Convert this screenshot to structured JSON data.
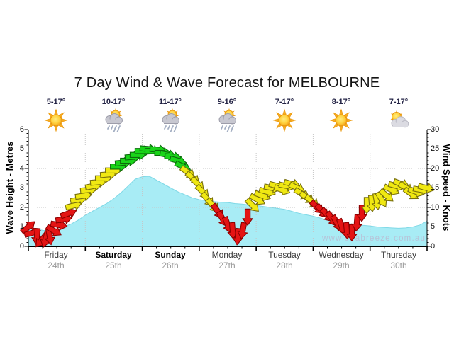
{
  "title": "7 Day Wind & Wave Forecast for MELBOURNE",
  "watermark": "www.seabreeze.com.au",
  "days": [
    {
      "name": "Friday",
      "date": "24th",
      "temp": "5-17°",
      "icon": "sun",
      "weekend": false
    },
    {
      "name": "Saturday",
      "date": "25th",
      "temp": "10-17°",
      "icon": "rainsun",
      "weekend": true
    },
    {
      "name": "Sunday",
      "date": "26th",
      "temp": "11-17°",
      "icon": "rainsun",
      "weekend": true
    },
    {
      "name": "Monday",
      "date": "27th",
      "temp": "9-16°",
      "icon": "rainsun",
      "weekend": false
    },
    {
      "name": "Tuesday",
      "date": "28th",
      "temp": "7-17°",
      "icon": "sun",
      "weekend": false
    },
    {
      "name": "Wednesday",
      "date": "29th",
      "temp": "8-17°",
      "icon": "sun",
      "weekend": false
    },
    {
      "name": "Thursday",
      "date": "30th",
      "temp": "7-17°",
      "icon": "cloudsun",
      "weekend": false
    }
  ],
  "axes": {
    "left": {
      "title": "Wave Height - Metres",
      "ticks": [
        "0",
        "1",
        "2",
        "3",
        "4",
        "5",
        "6"
      ],
      "range": [
        0,
        6
      ]
    },
    "right": {
      "title": "Wind Speed - Knots",
      "ticks": [
        "0",
        "5",
        "10",
        "15",
        "20",
        "25",
        "30"
      ],
      "range": [
        0,
        30
      ]
    },
    "x": {
      "days_shown": 7,
      "hours_total": 168,
      "minor_tick_hours": 6
    }
  },
  "colors": {
    "wave_fill": "#a8ecf5",
    "wave_edge": "#7fd8e6",
    "grid": "#c6c6c6",
    "axis": "#000000",
    "watermark": "#b7c3d8",
    "wind": {
      "r": {
        "fill": "#e41414",
        "stroke": "#8c0000"
      },
      "y": {
        "fill": "#f0e812",
        "stroke": "#79700c"
      },
      "g": {
        "fill": "#1ad41a",
        "stroke": "#0b6b0b"
      }
    }
  },
  "chart_data": {
    "type": "area",
    "title": "7 Day Wind & Wave Forecast for MELBOURNE",
    "x_unit": "hours from Friday 00:00",
    "xlim": [
      0,
      168
    ],
    "grid": "dotted, horizontal each metre, vertical each day boundary",
    "wave": {
      "name": "Wave Height - Metres",
      "ylim": [
        0,
        6
      ],
      "x": [
        0,
        3,
        6,
        9,
        12,
        15,
        18,
        21,
        24,
        27,
        30,
        33,
        36,
        39,
        42,
        45,
        48,
        51,
        54,
        57,
        60,
        63,
        66,
        69,
        72,
        75,
        78,
        81,
        84,
        87,
        90,
        93,
        96,
        99,
        102,
        105,
        108,
        111,
        114,
        117,
        120,
        123,
        126,
        129,
        132,
        135,
        138,
        141,
        144,
        147,
        150,
        153,
        156,
        159,
        162,
        165,
        168
      ],
      "m": [
        1.05,
        0.9,
        0.82,
        0.8,
        0.85,
        1.0,
        1.15,
        1.35,
        1.6,
        1.8,
        2.0,
        2.2,
        2.45,
        2.75,
        3.1,
        3.45,
        3.58,
        3.6,
        3.4,
        3.2,
        3.0,
        2.8,
        2.65,
        2.5,
        2.4,
        2.35,
        2.3,
        2.27,
        2.25,
        2.2,
        2.17,
        2.13,
        2.1,
        2.05,
        2.0,
        1.95,
        1.9,
        1.8,
        1.7,
        1.62,
        1.55,
        1.45,
        1.35,
        1.28,
        1.22,
        1.17,
        1.12,
        1.08,
        1.05,
        1.0,
        0.97,
        0.95,
        0.93,
        0.95,
        1.0,
        1.1,
        1.3
      ]
    },
    "wind": {
      "name": "Wind Speed - Knots",
      "ylim": [
        0,
        30
      ],
      "point_format": [
        "hour",
        "knots",
        "arrow_rotation_deg_cw_from_east",
        "color r|y|g"
      ],
      "points": [
        [
          0,
          5,
          -40,
          "r"
        ],
        [
          1.8,
          3.5,
          -15,
          "r"
        ],
        [
          3.6,
          2.5,
          95,
          "r"
        ],
        [
          5.4,
          1.5,
          130,
          "r"
        ],
        [
          7.2,
          1.8,
          105,
          "r"
        ],
        [
          9,
          2.5,
          80,
          "r"
        ],
        [
          10.8,
          4,
          30,
          "r"
        ],
        [
          12.9,
          5.5,
          10,
          "r"
        ],
        [
          15,
          7,
          -10,
          "r"
        ],
        [
          17,
          8.5,
          -20,
          "r"
        ],
        [
          19.1,
          10.5,
          -15,
          "y"
        ],
        [
          21.2,
          12,
          -10,
          "y"
        ],
        [
          23.3,
          13,
          -8,
          "y"
        ],
        [
          25.4,
          14.5,
          -5,
          "y"
        ],
        [
          27.5,
          15.5,
          -10,
          "y"
        ],
        [
          29.6,
          16.5,
          -5,
          "y"
        ],
        [
          31.7,
          17.5,
          0,
          "y"
        ],
        [
          33.8,
          18.5,
          -5,
          "y"
        ],
        [
          35.9,
          19.5,
          0,
          "y"
        ],
        [
          38,
          20.5,
          0,
          "g"
        ],
        [
          40.1,
          21.5,
          -5,
          "g"
        ],
        [
          42.2,
          22,
          0,
          "g"
        ],
        [
          44.2,
          23,
          -5,
          "g"
        ],
        [
          46.3,
          23.5,
          0,
          "g"
        ],
        [
          48.4,
          24.5,
          0,
          "g"
        ],
        [
          50.5,
          25,
          5,
          "g"
        ],
        [
          52.6,
          24.5,
          0,
          "g"
        ],
        [
          54.7,
          24.8,
          5,
          "g"
        ],
        [
          56.8,
          24,
          0,
          "g"
        ],
        [
          58.9,
          23.5,
          10,
          "g"
        ],
        [
          61,
          23,
          5,
          "g"
        ],
        [
          63.1,
          22,
          15,
          "g"
        ],
        [
          65.2,
          20.5,
          25,
          "g"
        ],
        [
          67.3,
          19,
          35,
          "y"
        ],
        [
          69.4,
          17.5,
          40,
          "y"
        ],
        [
          71.4,
          16,
          45,
          "y"
        ],
        [
          73.5,
          14,
          45,
          "y"
        ],
        [
          75.6,
          12,
          50,
          "y"
        ],
        [
          77.7,
          10.5,
          50,
          "y"
        ],
        [
          79.8,
          9,
          55,
          "r"
        ],
        [
          81.9,
          7,
          60,
          "r"
        ],
        [
          84,
          5.5,
          70,
          "r"
        ],
        [
          86.1,
          4,
          85,
          "r"
        ],
        [
          88.2,
          2.5,
          95,
          "r"
        ],
        [
          90.3,
          4,
          100,
          "r"
        ],
        [
          92.4,
          7.5,
          90,
          "r"
        ],
        [
          94.5,
          10.5,
          45,
          "y"
        ],
        [
          96.6,
          12,
          30,
          "y"
        ],
        [
          98.7,
          13,
          20,
          "y"
        ],
        [
          100.7,
          14,
          15,
          "y"
        ],
        [
          102.8,
          15,
          10,
          "y"
        ],
        [
          104.9,
          15.5,
          15,
          "y"
        ],
        [
          107,
          14.5,
          20,
          "y"
        ],
        [
          109.1,
          15.5,
          10,
          "y"
        ],
        [
          111.2,
          16,
          15,
          "y"
        ],
        [
          113.3,
          15,
          25,
          "y"
        ],
        [
          115.4,
          13.5,
          30,
          "y"
        ],
        [
          117.5,
          12.5,
          35,
          "y"
        ],
        [
          119.6,
          11.5,
          40,
          "y"
        ],
        [
          121.7,
          10,
          45,
          "r"
        ],
        [
          123.8,
          9,
          50,
          "r"
        ],
        [
          125.9,
          8,
          50,
          "r"
        ],
        [
          128,
          7,
          55,
          "r"
        ],
        [
          130,
          6,
          60,
          "r"
        ],
        [
          132.1,
          5,
          70,
          "r"
        ],
        [
          134.2,
          4,
          85,
          "r"
        ],
        [
          136.3,
          3.5,
          90,
          "r"
        ],
        [
          138.4,
          6,
          95,
          "r"
        ],
        [
          140.5,
          8.5,
          90,
          "r"
        ],
        [
          142.6,
          10.5,
          90,
          "y"
        ],
        [
          144.7,
          11,
          85,
          "y"
        ],
        [
          146.8,
          11.5,
          80,
          "y"
        ],
        [
          148.9,
          12,
          60,
          "y"
        ],
        [
          151,
          13,
          40,
          "y"
        ],
        [
          153.1,
          14.5,
          25,
          "y"
        ],
        [
          155.2,
          15.5,
          15,
          "y"
        ],
        [
          157.3,
          16,
          20,
          "y"
        ],
        [
          159.3,
          15,
          30,
          "y"
        ],
        [
          161.4,
          13.5,
          35,
          "y"
        ],
        [
          163.5,
          14,
          20,
          "y"
        ],
        [
          165.6,
          14.5,
          10,
          "y"
        ],
        [
          167.7,
          15,
          15,
          "y"
        ]
      ]
    }
  }
}
